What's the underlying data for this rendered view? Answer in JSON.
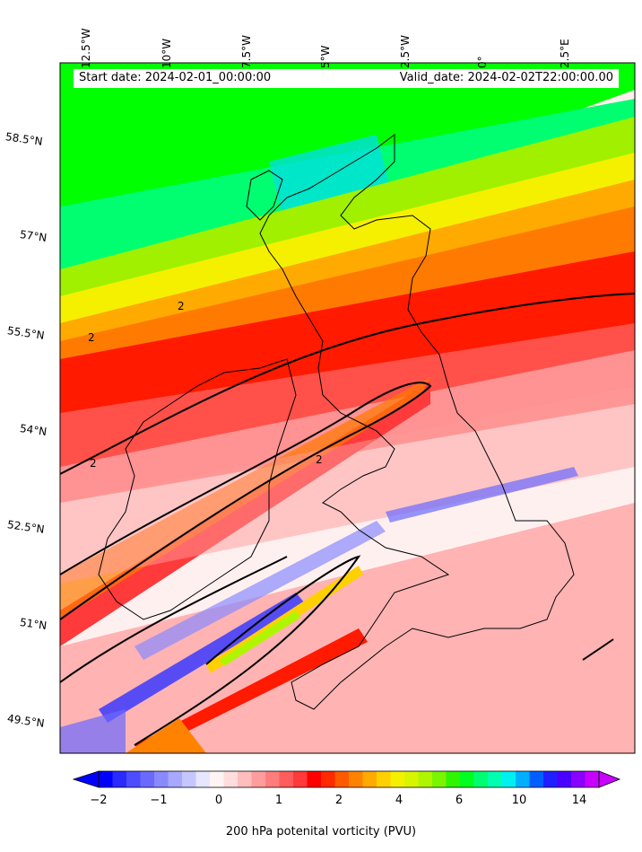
{
  "header": {
    "start_date": "Start date: 2024-02-01_00:00:00",
    "valid_date": "Valid_date: 2024-02-02T22:00:00.00"
  },
  "longitude_labels": [
    "12.5°W",
    "10°W",
    "7.5°W",
    "5°W",
    "2.5°W",
    "0°",
    "2.5°E"
  ],
  "latitude_labels": [
    "58.5°N",
    "57°N",
    "55.5°N",
    "54°N",
    "52.5°N",
    "51°N",
    "49.5°N"
  ],
  "contour_label": "2",
  "colorbar": {
    "label": "200 hPa potenital vorticity (PVU)",
    "ticks": [
      "−2",
      "−1",
      "0",
      "1",
      "2",
      "4",
      "6",
      "10",
      "14"
    ],
    "colors": [
      "#0000ff",
      "#2a2aff",
      "#4d4dff",
      "#6a6aff",
      "#8a8aff",
      "#a8a8ff",
      "#c6c6ff",
      "#e6e6ff",
      "#fff3f3",
      "#ffdddd",
      "#ffbdbd",
      "#ff9d9d",
      "#ff7d7d",
      "#ff5c5c",
      "#ff3a3a",
      "#ff0000",
      "#ff2a00",
      "#ff5a00",
      "#ff8200",
      "#ffaa00",
      "#ffd000",
      "#f5f000",
      "#d8f500",
      "#b0f500",
      "#7af500",
      "#30f500",
      "#00ff20",
      "#00ff70",
      "#00ffb0",
      "#00f0f0",
      "#00b0ff",
      "#0060ff",
      "#2020ff",
      "#4a00ff",
      "#8a00ff",
      "#c800ff"
    ]
  },
  "colors": {
    "field_green": "#00ff00",
    "field_red": "#ff1a00",
    "field_orange": "#ff7a00",
    "field_pink": "#ff9a9a",
    "field_white": "#fff0f0",
    "field_blue": "#6a6aff"
  }
}
